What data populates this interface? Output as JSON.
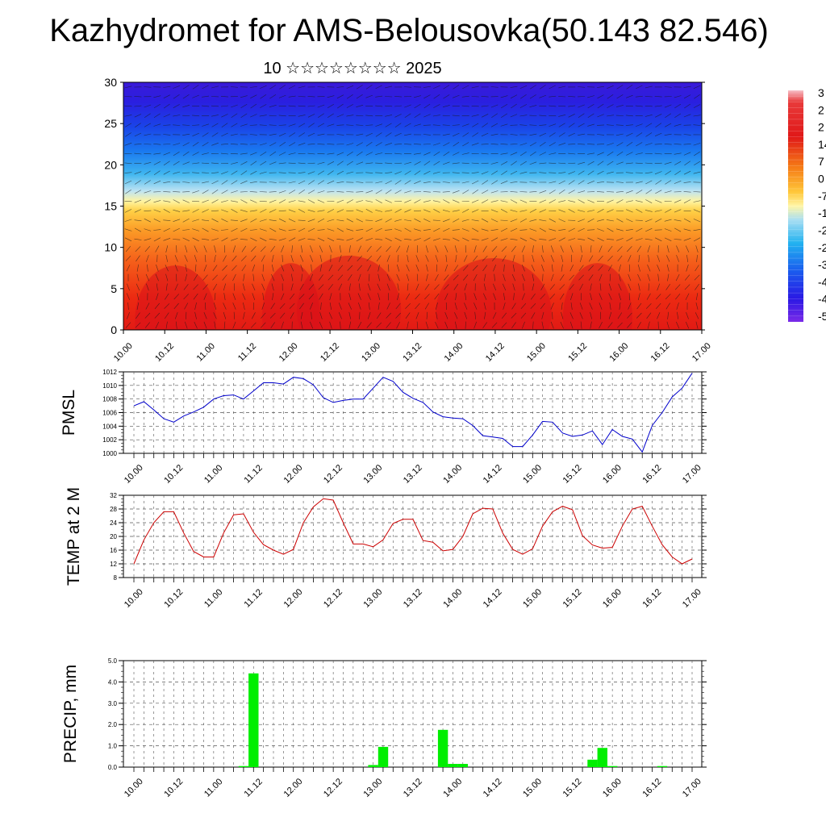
{
  "header": {
    "title": "Kazhydromet for AMS-Belousovka(50.143 82.546)",
    "subtitle": "10 ☆☆☆☆☆☆☆☆ 2025"
  },
  "colors": {
    "pmsl_line": "#0000cc",
    "temp_line": "#cc0000",
    "precip_bar": "#00ee00",
    "grid": "#555555"
  },
  "chart_data": [
    {
      "type": "heatmap",
      "title": "",
      "xlabel": "",
      "ylabel": "",
      "x_ticks": [
        "10.00",
        "10.12",
        "11.00",
        "11.12",
        "12.00",
        "12.12",
        "13.00",
        "13.12",
        "14.00",
        "14.12",
        "15.00",
        "15.12",
        "16.00",
        "16.12",
        "17.00"
      ],
      "y_ticks": [
        0,
        5,
        10,
        15,
        20,
        25,
        30
      ],
      "ylim": [
        0,
        30
      ],
      "overlay": "wind vector arrows",
      "colormap": [
        "#6a1ee6",
        "#2a0ee0",
        "#1233e8",
        "#1a66f0",
        "#199cf2",
        "#28c6f4",
        "#9fdcf0",
        "#fff7a0",
        "#ffd84a",
        "#ffb020",
        "#ff7a14",
        "#f2401a",
        "#dd1a1a",
        "#c81818",
        "#f7a0a8"
      ],
      "colorbar_labels": [
        "3",
        "2",
        "2",
        "14",
        "7",
        "0",
        "-7",
        "-1",
        "-2",
        "-2",
        "-3",
        "-4",
        "-4",
        "-5"
      ]
    },
    {
      "type": "line",
      "ylabel": "PMSL",
      "x_ticks": [
        "10.00",
        "10.12",
        "11.00",
        "11.12",
        "12.00",
        "12.12",
        "13.00",
        "13.12",
        "14.00",
        "14.12",
        "15.00",
        "15.12",
        "16.00",
        "16.12",
        "17.00"
      ],
      "y_ticks": [
        "1012",
        "1010",
        "1008",
        "1006",
        "1004",
        "1002",
        "1000"
      ],
      "ylim": [
        1000,
        1012
      ],
      "grid": true,
      "series": [
        {
          "values": [
            1007.0,
            1007.6,
            1006.4,
            1005.1,
            1004.6,
            1005.5,
            1006.1,
            1006.8,
            1008.0,
            1008.5,
            1008.6,
            1008.0,
            1009.2,
            1010.4,
            1010.4,
            1010.2,
            1011.2,
            1011.0,
            1010.1,
            1008.2,
            1007.5,
            1007.8,
            1008.0,
            1008.0,
            1009.6,
            1011.2,
            1010.6,
            1009.0,
            1008.1,
            1007.5,
            1006.1,
            1005.4,
            1005.2,
            1005.1,
            1004.1,
            1002.6,
            1002.4,
            1002.2,
            1001.0,
            1001.0,
            1002.7,
            1004.7,
            1004.6,
            1003.0,
            1002.5,
            1002.7,
            1003.3,
            1001.3,
            1003.5,
            1002.5,
            1002.1,
            1000.2,
            1004.1,
            1006.0,
            1008.3,
            1009.6,
            1011.8
          ]
        }
      ]
    },
    {
      "type": "line",
      "ylabel": "TEMP at 2 M",
      "x_ticks": [
        "10.00",
        "10.12",
        "11.00",
        "11.12",
        "12.00",
        "12.12",
        "13.00",
        "13.12",
        "14.00",
        "14.12",
        "15.00",
        "15.12",
        "16.00",
        "16.12",
        "17.00"
      ],
      "y_ticks": [
        "32",
        "28",
        "24",
        "20",
        "16",
        "12",
        "8"
      ],
      "ylim": [
        8,
        32
      ],
      "grid": true,
      "series": [
        {
          "values": [
            12.0,
            19.0,
            24.0,
            27.2,
            27.2,
            21.0,
            15.6,
            14.0,
            14.0,
            21.0,
            26.3,
            26.6,
            21.2,
            17.6,
            16.0,
            14.8,
            16.2,
            24.0,
            28.6,
            31.0,
            30.6,
            24.0,
            17.8,
            17.8,
            17.0,
            19.0,
            23.8,
            25.0,
            25.0,
            18.8,
            18.3,
            15.8,
            16.2,
            20.0,
            26.6,
            28.2,
            28.0,
            21.0,
            16.2,
            14.8,
            16.4,
            23.0,
            27.2,
            28.8,
            27.8,
            20.2,
            17.5,
            16.6,
            16.8,
            23.0,
            28.0,
            28.8,
            23.0,
            17.6,
            14.0,
            12.0,
            13.4
          ]
        }
      ]
    },
    {
      "type": "bar",
      "ylabel": "PRECIP, mm",
      "x_ticks": [
        "10.00",
        "10.12",
        "11.00",
        "11.12",
        "12.00",
        "12.12",
        "13.00",
        "13.12",
        "14.00",
        "14.12",
        "15.00",
        "15.12",
        "16.00",
        "16.12",
        "17.00"
      ],
      "y_ticks": [
        "5.0",
        "4.0",
        "3.0",
        "2.0",
        "1.0",
        "0.0"
      ],
      "ylim": [
        0,
        5
      ],
      "grid": true,
      "bars": [
        {
          "x_hours": 33,
          "value": 0.05
        },
        {
          "x_hours": 36,
          "value": 4.4
        },
        {
          "x_hours": 72,
          "value": 0.1
        },
        {
          "x_hours": 75,
          "value": 0.95
        },
        {
          "x_hours": 93,
          "value": 1.75
        },
        {
          "x_hours": 96,
          "value": 0.15
        },
        {
          "x_hours": 99,
          "value": 0.15
        },
        {
          "x_hours": 138,
          "value": 0.35
        },
        {
          "x_hours": 141,
          "value": 0.9
        },
        {
          "x_hours": 144,
          "value": 0.05
        },
        {
          "x_hours": 159,
          "value": 0.05
        }
      ]
    }
  ]
}
